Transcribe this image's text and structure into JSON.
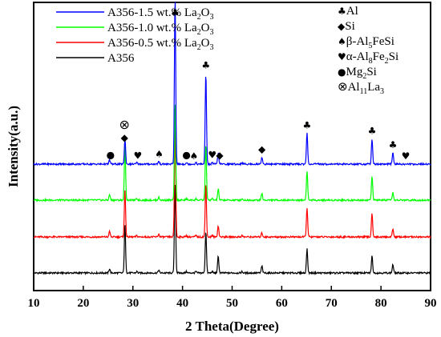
{
  "chart_data": {
    "type": "line",
    "xlabel": "2 Theta(Degree)",
    "ylabel": "Intensity(a.u.)",
    "xlim": [
      10,
      90
    ],
    "x_ticks": [
      10,
      20,
      30,
      40,
      50,
      60,
      70,
      80,
      90
    ],
    "legend_position": "top-left",
    "peak_positions": [
      25.3,
      28.4,
      30.8,
      35.2,
      38.5,
      40.8,
      42.7,
      44.7,
      46.0,
      47.2,
      52.0,
      56.0,
      65.1,
      78.2,
      82.4
    ],
    "series": [
      {
        "name": "A356",
        "legend": {
          "base": "A356",
          "sub": "",
          "tail": ""
        },
        "color": "#000000",
        "peak_heights": [
          0.03,
          0.34,
          0.01,
          0.02,
          0.65,
          0.01,
          0.01,
          0.3,
          0.01,
          0.12,
          0.01,
          0.05,
          0.17,
          0.12,
          0.06
        ]
      },
      {
        "name": "A356-0.5 wt.% La2O3",
        "legend": {
          "base": "A356-0.5 wt.% La",
          "sub": "2",
          "tail": "O",
          "sub2": "3"
        },
        "color": "#ff0000",
        "peak_heights": [
          0.04,
          0.33,
          0.01,
          0.02,
          0.8,
          0.01,
          0.01,
          0.38,
          0.01,
          0.08,
          0.01,
          0.03,
          0.21,
          0.17,
          0.06
        ]
      },
      {
        "name": "A356-1.0 wt.% La2O3",
        "legend": {
          "base": "A356-1.0 wt.% La",
          "sub": "2",
          "tail": "O",
          "sub2": "3"
        },
        "color": "#00ff00",
        "peak_heights": [
          0.04,
          0.38,
          0.01,
          0.02,
          0.7,
          0.01,
          0.01,
          0.4,
          0.01,
          0.08,
          0.01,
          0.05,
          0.21,
          0.17,
          0.05
        ]
      },
      {
        "name": "A356-1.5 wt.% La2O3",
        "legend": {
          "base": "A356-1.5 wt.% La",
          "sub": "2",
          "tail": "O",
          "sub2": "3"
        },
        "color": "#0000ff",
        "peak_heights": [
          0.03,
          0.18,
          0.01,
          0.02,
          1.2,
          0.01,
          0.01,
          0.65,
          0.01,
          0.08,
          0.01,
          0.05,
          0.22,
          0.18,
          0.08
        ]
      }
    ],
    "phase_legend": [
      {
        "symbol": "♣",
        "label": "Al",
        "parts": [
          [
            "Al",
            ""
          ]
        ]
      },
      {
        "symbol": "◆",
        "label": "Si",
        "parts": [
          [
            "Si",
            ""
          ]
        ]
      },
      {
        "symbol": "♠",
        "label": "β-Al5FeSi",
        "parts": [
          [
            "β-Al",
            ""
          ],
          [
            "5",
            "sub"
          ],
          [
            "FeSi",
            ""
          ]
        ]
      },
      {
        "symbol": "♥",
        "label": "α-Al8Fe2Si",
        "parts": [
          [
            "α-Al",
            ""
          ],
          [
            "8",
            "sub"
          ],
          [
            "Fe",
            ""
          ],
          [
            "2",
            "sub"
          ],
          [
            "Si",
            ""
          ]
        ]
      },
      {
        "symbol": "●",
        "label": "Mg2Si",
        "parts": [
          [
            "Mg",
            ""
          ],
          [
            "2",
            "sub"
          ],
          [
            "Si",
            ""
          ]
        ]
      },
      {
        "symbol": "⊗",
        "label": "Al11La3",
        "parts": [
          [
            "Al",
            ""
          ],
          [
            "11",
            "sub"
          ],
          [
            "La",
            ""
          ],
          [
            "3",
            "sub"
          ]
        ]
      }
    ],
    "peak_markers": [
      {
        "x": 25.5,
        "symbol": "●"
      },
      {
        "x": 28.3,
        "symbol": "◆"
      },
      {
        "x": 28.3,
        "symbol": "⊗",
        "stack": 1
      },
      {
        "x": 31.0,
        "symbol": "♥"
      },
      {
        "x": 35.3,
        "symbol": "♠"
      },
      {
        "x": 38.5,
        "symbol": "♣"
      },
      {
        "x": 40.8,
        "symbol": "●"
      },
      {
        "x": 42.3,
        "symbol": "♠"
      },
      {
        "x": 44.7,
        "symbol": "♣"
      },
      {
        "x": 46.0,
        "symbol": "♥"
      },
      {
        "x": 47.5,
        "symbol": "◆"
      },
      {
        "x": 56.0,
        "symbol": "◆"
      },
      {
        "x": 65.1,
        "symbol": "♣"
      },
      {
        "x": 78.2,
        "symbol": "♣"
      },
      {
        "x": 82.4,
        "symbol": "♣"
      },
      {
        "x": 85.0,
        "symbol": "♥"
      }
    ]
  }
}
